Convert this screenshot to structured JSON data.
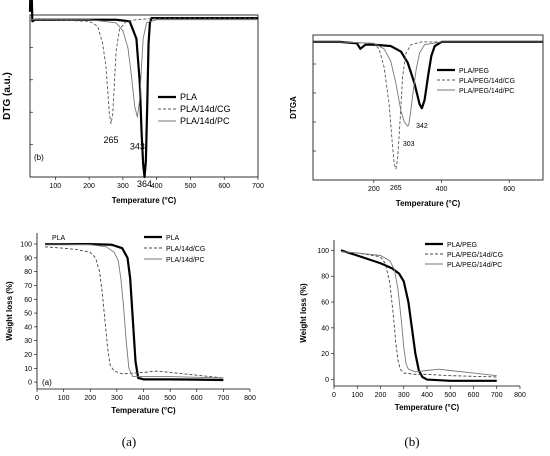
{
  "captions": {
    "left": "(a)",
    "right": "(b)"
  },
  "chart_data": [
    {
      "id": "dtg-a",
      "type": "line",
      "panel_label": "(b)",
      "xlabel": "Temperature (°C)",
      "ylabel": "DTG (a.u.)",
      "xlim": [
        25,
        700
      ],
      "ylim": [
        -1,
        0.03
      ],
      "xticks": [
        100,
        200,
        300,
        400,
        500,
        600,
        700
      ],
      "yticks": [],
      "legend": {
        "position": "top-right"
      },
      "annotations": [
        {
          "text": "265",
          "x": 265,
          "y": -0.72
        },
        {
          "text": "343",
          "x": 343,
          "y": -0.76
        },
        {
          "text": "364",
          "x": 364,
          "y": -1.0
        }
      ],
      "series": [
        {
          "name": "PLA",
          "style": "thick-solid",
          "color": "#000000",
          "x": [
            25,
            28,
            32,
            40,
            100,
            200,
            280,
            320,
            340,
            350,
            355,
            360,
            364,
            368,
            372,
            376,
            380,
            385,
            390,
            450,
            500,
            600,
            700
          ],
          "y": [
            0.05,
            0.35,
            -0.01,
            0,
            0,
            0,
            0,
            -0.01,
            -0.12,
            -0.4,
            -0.7,
            -0.92,
            -1.0,
            -0.9,
            -0.55,
            -0.15,
            -0.02,
            0.01,
            0.01,
            0.01,
            0.01,
            0.01,
            0.01
          ]
        },
        {
          "name": "PLA/14d/CG",
          "style": "dashed",
          "color": "#555555",
          "x": [
            25,
            100,
            200,
            225,
            240,
            250,
            255,
            260,
            265,
            270,
            275,
            280,
            290,
            310,
            340,
            400,
            500,
            600,
            700
          ],
          "y": [
            0,
            0,
            -0.01,
            -0.04,
            -0.15,
            -0.3,
            -0.45,
            -0.6,
            -0.66,
            -0.6,
            -0.4,
            -0.2,
            -0.06,
            -0.01,
            0,
            0.01,
            0.01,
            0.01,
            0.01
          ]
        },
        {
          "name": "PLA/14d/PC",
          "style": "thin-solid",
          "color": "#777777",
          "x": [
            25,
            100,
            200,
            280,
            300,
            315,
            325,
            335,
            343,
            350,
            355,
            360,
            370,
            400,
            500,
            600,
            700
          ],
          "y": [
            0,
            0,
            0,
            -0.02,
            -0.07,
            -0.18,
            -0.35,
            -0.55,
            -0.62,
            -0.5,
            -0.3,
            -0.12,
            -0.02,
            0,
            0,
            0,
            0
          ]
        }
      ]
    },
    {
      "id": "dtga-b",
      "type": "line",
      "panel_label": "",
      "xlabel": "Temperature (°C)",
      "ylabel": "DTGA",
      "xlim": [
        20,
        700
      ],
      "ylim": [
        -1,
        0.05
      ],
      "xticks": [
        200,
        400,
        600
      ],
      "yticks": [],
      "legend": {
        "position": "right"
      },
      "annotations": [
        {
          "text": "265",
          "x": 265,
          "y": -1.0
        },
        {
          "text": "303",
          "x": 303,
          "y": -0.68
        },
        {
          "text": "342",
          "x": 342,
          "y": -0.55
        }
      ],
      "series": [
        {
          "name": "PLA/PEG",
          "style": "thick-solid",
          "color": "#000000",
          "x": [
            20,
            100,
            150,
            160,
            175,
            200,
            250,
            280,
            300,
            320,
            335,
            342,
            350,
            360,
            370,
            380,
            400,
            500,
            600,
            700
          ],
          "y": [
            0,
            0,
            -0.01,
            -0.05,
            -0.02,
            -0.02,
            -0.03,
            -0.07,
            -0.15,
            -0.3,
            -0.45,
            -0.48,
            -0.42,
            -0.25,
            -0.1,
            -0.03,
            0,
            0,
            0,
            0
          ]
        },
        {
          "name": "PLA/PEG/14d/CG",
          "style": "dashed",
          "color": "#555555",
          "x": [
            20,
            100,
            200,
            215,
            230,
            245,
            255,
            260,
            265,
            270,
            278,
            285,
            295,
            310,
            340,
            400,
            500,
            700
          ],
          "y": [
            0,
            0,
            -0.01,
            -0.05,
            -0.18,
            -0.45,
            -0.75,
            -0.88,
            -0.92,
            -0.85,
            -0.55,
            -0.25,
            -0.08,
            -0.02,
            0,
            0,
            0,
            0
          ]
        },
        {
          "name": "PLA/PEG/14d/PC",
          "style": "thin-solid",
          "color": "#777777",
          "x": [
            20,
            100,
            200,
            230,
            250,
            265,
            280,
            290,
            300,
            303,
            308,
            315,
            325,
            335,
            350,
            400,
            500,
            700
          ],
          "y": [
            0,
            0,
            -0.01,
            -0.05,
            -0.14,
            -0.3,
            -0.5,
            -0.58,
            -0.61,
            -0.6,
            -0.52,
            -0.38,
            -0.2,
            -0.08,
            -0.02,
            0,
            0,
            0
          ]
        }
      ]
    },
    {
      "id": "wl-a",
      "type": "line",
      "panel_label": "(a)",
      "top_label": "PLA",
      "xlabel": "Temperature (°C)",
      "ylabel": "Weight loss (%)",
      "xlim": [
        0,
        800
      ],
      "ylim": [
        -5,
        108
      ],
      "xticks": [
        0,
        100,
        200,
        300,
        400,
        500,
        600,
        700,
        800
      ],
      "yticks": [
        0,
        10,
        20,
        30,
        40,
        50,
        60,
        70,
        80,
        90,
        100
      ],
      "legend": {
        "position": "top-right"
      },
      "series": [
        {
          "name": "PLA",
          "style": "thick-solid",
          "color": "#000000",
          "x": [
            30,
            100,
            200,
            280,
            320,
            340,
            350,
            360,
            370,
            380,
            400,
            500,
            600,
            700
          ],
          "y": [
            100,
            100,
            100,
            99.5,
            97,
            90,
            75,
            45,
            15,
            3,
            2,
            2,
            1.8,
            1.5
          ]
        },
        {
          "name": "PLA/14d/CG",
          "style": "dashed",
          "color": "#444444",
          "x": [
            30,
            100,
            150,
            200,
            220,
            235,
            245,
            255,
            265,
            275,
            290,
            320,
            400,
            450,
            500,
            600,
            700
          ],
          "y": [
            98,
            97,
            96,
            94,
            90,
            80,
            65,
            45,
            25,
            12,
            8,
            6,
            7,
            8,
            7,
            5,
            3
          ]
        },
        {
          "name": "PLA/14d/PC",
          "style": "thin-solid",
          "color": "#777777",
          "x": [
            30,
            100,
            200,
            260,
            290,
            305,
            315,
            325,
            335,
            345,
            360,
            400,
            500,
            600,
            700
          ],
          "y": [
            100,
            100,
            99.5,
            98,
            94,
            88,
            75,
            55,
            30,
            10,
            4,
            4,
            4,
            3.5,
            3
          ]
        }
      ]
    },
    {
      "id": "wl-b",
      "type": "line",
      "panel_label": "",
      "xlabel": "Temperature (°C)",
      "ylabel": "Weight loss (%)",
      "xlim": [
        0,
        800
      ],
      "ylim": [
        -5,
        108
      ],
      "xticks": [
        0,
        100,
        200,
        300,
        400,
        500,
        600,
        700,
        800
      ],
      "yticks": [
        0,
        20,
        40,
        60,
        80,
        100
      ],
      "legend": {
        "position": "top-right"
      },
      "series": [
        {
          "name": "PLA/PEG",
          "style": "thick-solid",
          "color": "#000000",
          "x": [
            30,
            100,
            150,
            200,
            250,
            280,
            300,
            320,
            335,
            350,
            365,
            380,
            400,
            500,
            600,
            700
          ],
          "y": [
            100,
            96,
            93,
            90,
            86,
            82,
            76,
            60,
            40,
            20,
            7,
            2,
            0,
            -1,
            -1,
            -1
          ]
        },
        {
          "name": "PLA/PEG/14d/CG",
          "style": "dashed",
          "color": "#444444",
          "x": [
            30,
            100,
            200,
            220,
            240,
            255,
            265,
            275,
            285,
            300,
            350,
            400,
            500,
            600,
            700
          ],
          "y": [
            99,
            98,
            95,
            90,
            75,
            50,
            30,
            15,
            8,
            5,
            4,
            4,
            3,
            2.5,
            2
          ]
        },
        {
          "name": "PLA/PEG/14d/PC",
          "style": "thin-solid",
          "color": "#777777",
          "x": [
            30,
            100,
            200,
            240,
            260,
            275,
            290,
            300,
            310,
            320,
            350,
            400,
            450,
            500,
            600,
            700
          ],
          "y": [
            99,
            98,
            96,
            92,
            85,
            70,
            45,
            25,
            12,
            8,
            6,
            7,
            8,
            7,
            5,
            3
          ]
        }
      ]
    }
  ]
}
